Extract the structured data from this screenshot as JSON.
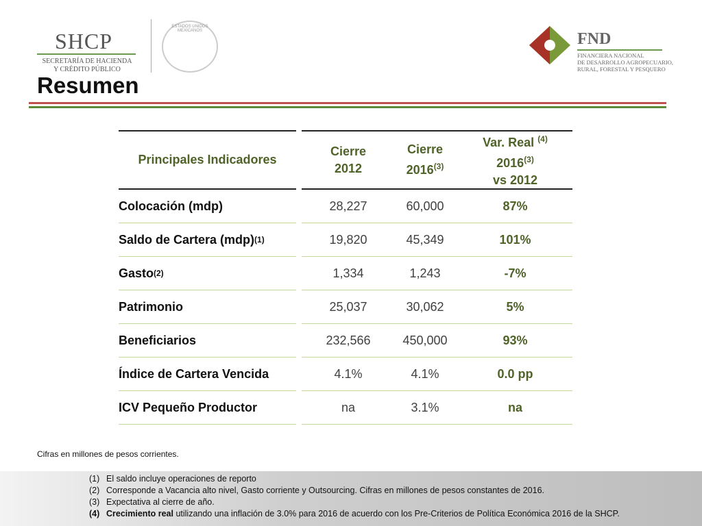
{
  "header": {
    "shcp": {
      "name": "SHCP",
      "line1": "SECRETARÍA DE HACIENDA",
      "line2": "Y CRÉDITO PÚBLICO"
    },
    "seal": "ESTADOS UNIDOS MEXICANOS",
    "fnd": {
      "name": "FND",
      "line1": "FINANCIERA NACIONAL",
      "line2": "DE DESARROLLO AGROPECUARIO,",
      "line3": "RURAL, FORESTAL Y PESQUERO"
    },
    "title": "Resumen"
  },
  "table": {
    "columns": [
      [
        {
          "text": "Principales Indicadores"
        }
      ],
      [
        {
          "text": "Cierre"
        },
        {
          "text": "2012"
        }
      ],
      [
        {
          "text": "Cierre"
        },
        {
          "text": "2016",
          "sup": "(3)"
        }
      ],
      [
        {
          "text": "Var. Real ",
          "sup": "(4)"
        },
        {
          "text": "2016",
          "sup": "(3)"
        },
        {
          "text": "vs 2012"
        }
      ]
    ],
    "rows": [
      {
        "label": "Colocación (mdp)",
        "values": [
          "28,227",
          "60,000",
          "87%"
        ]
      },
      {
        "label": "Saldo de Cartera (mdp)",
        "sup": "(1)",
        "values": [
          "19,820",
          "45,349",
          "101%"
        ]
      },
      {
        "label": "Gasto",
        "sup": "(2)",
        "values": [
          "1,334",
          "1,243",
          "-7%"
        ]
      },
      {
        "label": "Patrimonio",
        "values": [
          "25,037",
          "30,062",
          "5%"
        ]
      },
      {
        "label": "Beneficiarios",
        "values": [
          "232,566",
          "450,000",
          "93%"
        ]
      },
      {
        "label": "Índice de Cartera Vencida",
        "values": [
          "4.1%",
          "4.1%",
          "0.0 pp"
        ]
      },
      {
        "label": "ICV Pequeño Productor",
        "values": [
          "na",
          "3.1%",
          "na"
        ]
      }
    ]
  },
  "footnote": "Cifras en millones de pesos corrientes.",
  "notes": [
    {
      "marker": "(1)",
      "text": "El saldo incluye operaciones de reporto"
    },
    {
      "marker": "(2)",
      "text": "Corresponde a Vacancia alto nivel, Gasto corriente y Outsourcing. Cifras en millones de pesos constantes de 2016."
    },
    {
      "marker": "(3)",
      "text": "Expectativa al cierre de año."
    },
    {
      "marker": "(4)",
      "bold": "Crecimiento real",
      "text": " utilizando una inflación de 3.0% para 2016 de acuerdo con los Pre-Criterios de Política Económica 2016 de la SHCP."
    }
  ]
}
